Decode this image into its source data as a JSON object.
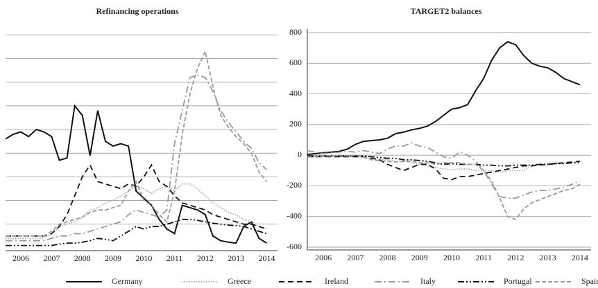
{
  "chart_data": [
    {
      "type": "line",
      "title": "Refinancing operations",
      "x": [
        2006.0,
        2006.25,
        2006.5,
        2006.75,
        2007.0,
        2007.25,
        2007.5,
        2007.75,
        2008.0,
        2008.25,
        2008.5,
        2008.75,
        2009.0,
        2009.25,
        2009.5,
        2009.75,
        2010.0,
        2010.25,
        2010.5,
        2010.75,
        2011.0,
        2011.25,
        2011.5,
        2011.75,
        2012.0,
        2012.25,
        2012.5,
        2012.75,
        2013.0,
        2013.25,
        2013.5,
        2013.75,
        2014.0,
        2014.25,
        2014.5
      ],
      "xlim": [
        2006,
        2014.85
      ],
      "xticks": [
        {
          "value": 2006.5,
          "label": "2006"
        },
        {
          "value": 2007.5,
          "label": "2007"
        },
        {
          "value": 2008.5,
          "label": "2008"
        },
        {
          "value": 2009.5,
          "label": "2009"
        },
        {
          "value": 2010.5,
          "label": "2010"
        },
        {
          "value": 2011.5,
          "label": "2011"
        },
        {
          "value": 2012.5,
          "label": "2012"
        },
        {
          "value": 2013.5,
          "label": "2013"
        },
        {
          "value": 2014.5,
          "label": "2014"
        }
      ],
      "ylim": [
        0,
        490
      ],
      "ygrid": [
        50,
        100,
        150,
        200,
        250,
        300,
        350,
        400,
        450
      ],
      "legend": "bottom",
      "series": [
        {
          "name": "Germany",
          "color": "#111111",
          "style": "solid",
          "values": [
            230,
            240,
            245,
            235,
            250,
            245,
            235,
            185,
            190,
            300,
            280,
            195,
            290,
            225,
            215,
            220,
            215,
            120,
            105,
            90,
            60,
            40,
            30,
            90,
            85,
            80,
            70,
            25,
            15,
            12,
            10,
            45,
            55,
            20,
            10
          ]
        },
        {
          "name": "Greece",
          "color": "#aaaaaa",
          "style": "dotted",
          "values": [
            20,
            20,
            20,
            20,
            20,
            20,
            30,
            45,
            50,
            55,
            65,
            80,
            85,
            95,
            100,
            110,
            120,
            130,
            125,
            115,
            125,
            130,
            120,
            135,
            135,
            125,
            110,
            95,
            85,
            75,
            70,
            60,
            55,
            45,
            40
          ]
        },
        {
          "name": "Ireland",
          "color": "#111111",
          "style": "dashed",
          "values": [
            25,
            25,
            25,
            25,
            25,
            25,
            30,
            45,
            70,
            110,
            150,
            175,
            140,
            135,
            130,
            125,
            135,
            130,
            150,
            175,
            140,
            130,
            110,
            95,
            90,
            85,
            80,
            70,
            65,
            60,
            55,
            50,
            50,
            45,
            40
          ]
        },
        {
          "name": "Italy",
          "color": "#999999",
          "style": "dashdot",
          "values": [
            15,
            15,
            15,
            15,
            15,
            15,
            20,
            25,
            25,
            30,
            30,
            35,
            40,
            45,
            50,
            55,
            70,
            80,
            75,
            70,
            65,
            80,
            220,
            290,
            360,
            365,
            360,
            330,
            290,
            265,
            245,
            225,
            210,
            180,
            165
          ]
        },
        {
          "name": "Portugal",
          "color": "#111111",
          "style": "dashdotdot",
          "values": [
            5,
            5,
            5,
            5,
            5,
            5,
            5,
            8,
            10,
            10,
            12,
            15,
            20,
            18,
            15,
            25,
            35,
            45,
            40,
            45,
            45,
            50,
            55,
            60,
            60,
            58,
            55,
            52,
            50,
            48,
            47,
            45,
            40,
            35,
            30
          ]
        },
        {
          "name": "Spain",
          "color": "#999999",
          "style": "longdash",
          "values": [
            25,
            25,
            25,
            25,
            25,
            25,
            35,
            50,
            55,
            60,
            65,
            75,
            80,
            80,
            85,
            90,
            120,
            140,
            100,
            90,
            70,
            55,
            120,
            240,
            325,
            380,
            415,
            340,
            280,
            255,
            235,
            220,
            200,
            160,
            140
          ]
        }
      ]
    },
    {
      "type": "line",
      "title": "TARGET2 balances",
      "x": [
        2006.0,
        2006.25,
        2006.5,
        2006.75,
        2007.0,
        2007.25,
        2007.5,
        2007.75,
        2008.0,
        2008.25,
        2008.5,
        2008.75,
        2009.0,
        2009.25,
        2009.5,
        2009.75,
        2010.0,
        2010.25,
        2010.5,
        2010.75,
        2011.0,
        2011.25,
        2011.5,
        2011.75,
        2012.0,
        2012.25,
        2012.5,
        2012.75,
        2013.0,
        2013.25,
        2013.5,
        2013.75,
        2014.0,
        2014.25,
        2014.5
      ],
      "xlim": [
        2006,
        2014.85
      ],
      "xticks": [
        {
          "value": 2006.5,
          "label": "2006"
        },
        {
          "value": 2007.5,
          "label": "2007"
        },
        {
          "value": 2008.5,
          "label": "2008"
        },
        {
          "value": 2009.5,
          "label": "2009"
        },
        {
          "value": 2010.5,
          "label": "2010"
        },
        {
          "value": 2011.5,
          "label": "2011"
        },
        {
          "value": 2012.5,
          "label": "2012"
        },
        {
          "value": 2013.5,
          "label": "2013"
        },
        {
          "value": 2014.5,
          "label": "2014"
        }
      ],
      "ylim": [
        -600,
        800
      ],
      "yticks": [
        -600,
        -400,
        -200,
        0,
        200,
        400,
        600,
        800
      ],
      "series": [
        {
          "name": "Germany",
          "color": "#111111",
          "style": "solid",
          "values": [
            5,
            10,
            15,
            20,
            25,
            40,
            70,
            90,
            95,
            100,
            110,
            140,
            150,
            165,
            175,
            190,
            220,
            260,
            300,
            310,
            330,
            420,
            500,
            620,
            700,
            740,
            720,
            650,
            600,
            580,
            570,
            540,
            500,
            480,
            460
          ]
        },
        {
          "name": "Greece",
          "color": "#aaaaaa",
          "style": "dotted",
          "values": [
            -10,
            -10,
            -5,
            0,
            -5,
            -10,
            -10,
            -15,
            -20,
            -25,
            -30,
            -40,
            -40,
            -50,
            -60,
            -70,
            -80,
            -90,
            -95,
            -90,
            -90,
            -100,
            -100,
            -100,
            -110,
            -100,
            -100,
            -100,
            -70,
            -60,
            -55,
            -50,
            -50,
            -45,
            -40
          ]
        },
        {
          "name": "Ireland",
          "color": "#111111",
          "style": "dashed",
          "values": [
            -10,
            -10,
            -10,
            -10,
            -10,
            -10,
            -10,
            -10,
            -20,
            -30,
            -60,
            -80,
            -100,
            -80,
            -60,
            -60,
            -90,
            -150,
            -160,
            -140,
            -140,
            -130,
            -120,
            -110,
            -100,
            -90,
            -80,
            -70,
            -70,
            -65,
            -60,
            -55,
            -50,
            -45,
            -40
          ]
        },
        {
          "name": "Italy",
          "color": "#999999",
          "style": "dashdot",
          "values": [
            30,
            20,
            10,
            15,
            20,
            25,
            20,
            30,
            20,
            10,
            40,
            60,
            60,
            80,
            60,
            50,
            20,
            -10,
            -20,
            20,
            0,
            -40,
            -100,
            -190,
            -270,
            -280,
            -280,
            -260,
            -240,
            -230,
            -230,
            -220,
            -210,
            -190,
            -170
          ]
        },
        {
          "name": "Portugal",
          "color": "#111111",
          "style": "dashdotdot",
          "values": [
            -5,
            -5,
            -5,
            -5,
            -5,
            -5,
            -5,
            -5,
            -10,
            -15,
            -20,
            -20,
            -30,
            -30,
            -35,
            -40,
            -50,
            -60,
            -55,
            -60,
            -60,
            -60,
            -65,
            -65,
            -70,
            -70,
            -65,
            -65,
            -65,
            -60,
            -60,
            -55,
            -55,
            -50,
            -50
          ]
        },
        {
          "name": "Spain",
          "color": "#999999",
          "style": "longdash",
          "values": [
            -10,
            -10,
            -5,
            -5,
            0,
            -5,
            0,
            -10,
            -30,
            -35,
            -40,
            -45,
            -40,
            -40,
            -50,
            -50,
            -60,
            -50,
            -50,
            -50,
            -60,
            -60,
            -100,
            -170,
            -280,
            -400,
            -420,
            -350,
            -310,
            -290,
            -270,
            -250,
            -230,
            -220,
            -190
          ]
        }
      ]
    }
  ]
}
